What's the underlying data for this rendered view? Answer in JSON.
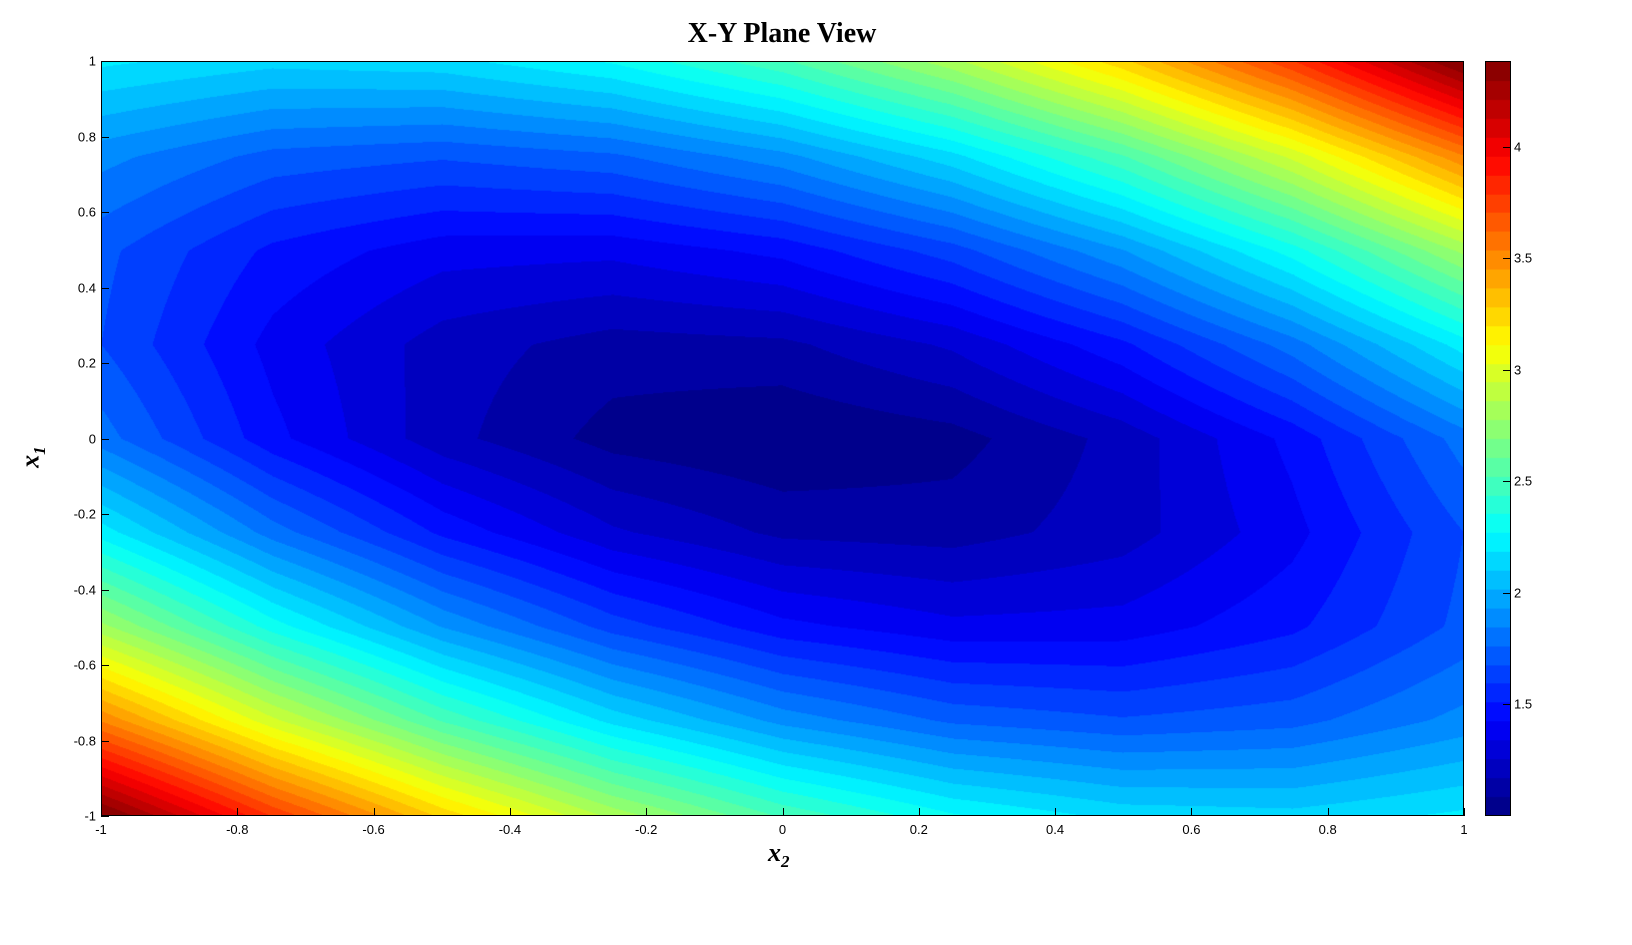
{
  "chart_data": {
    "type": "heatmap",
    "title": "X-Y Plane View",
    "xlabel": "x",
    "xlabel_sub": "2",
    "ylabel": "x",
    "ylabel_sub": "1",
    "xlim": [
      -1,
      1
    ],
    "ylim": [
      -1,
      1
    ],
    "xticks": [
      "-1",
      "-0.8",
      "-0.6",
      "-0.4",
      "-0.2",
      "0",
      "0.2",
      "0.4",
      "0.6",
      "0.8",
      "1"
    ],
    "yticks": [
      "1",
      "0.8",
      "0.6",
      "0.4",
      "0.2",
      "0",
      "-0.2",
      "-0.4",
      "-0.6",
      "-0.8",
      "-1"
    ],
    "colormap": "jet",
    "clim": [
      1.0,
      4.385
    ],
    "colorbar_ticks": [
      "1.5",
      "2",
      "2.5",
      "3",
      "3.5",
      "4"
    ],
    "contour_levels": 40,
    "grid_x2": [
      -1,
      -0.75,
      -0.5,
      -0.25,
      0,
      0.25,
      0.5,
      0.75,
      1
    ],
    "grid_x1": [
      1,
      0.75,
      0.5,
      0.25,
      0,
      -0.25,
      -0.5,
      -0.75,
      -1
    ],
    "z": [
      [
        2.2,
        2.125,
        2.15,
        2.275,
        2.5,
        2.825,
        3.25,
        3.775,
        4.4
      ],
      [
        1.875,
        1.731,
        1.688,
        1.744,
        1.9,
        2.156,
        2.513,
        2.969,
        3.525
      ],
      [
        1.7,
        1.488,
        1.375,
        1.363,
        1.45,
        1.638,
        1.925,
        2.313,
        2.8
      ],
      [
        1.675,
        1.394,
        1.213,
        1.131,
        1.15,
        1.269,
        1.488,
        1.806,
        2.225
      ],
      [
        1.8,
        1.45,
        1.2,
        1.05,
        1.0,
        1.05,
        1.2,
        1.45,
        1.8
      ],
      [
        2.225,
        1.806,
        1.488,
        1.269,
        1.15,
        1.131,
        1.213,
        1.394,
        1.675
      ],
      [
        2.8,
        2.313,
        1.925,
        1.638,
        1.45,
        1.363,
        1.375,
        1.488,
        1.7
      ],
      [
        3.525,
        2.969,
        2.513,
        2.156,
        1.9,
        1.744,
        1.688,
        1.731,
        1.875
      ],
      [
        4.4,
        3.775,
        3.25,
        2.825,
        2.5,
        2.275,
        2.15,
        2.125,
        2.2
      ]
    ]
  }
}
